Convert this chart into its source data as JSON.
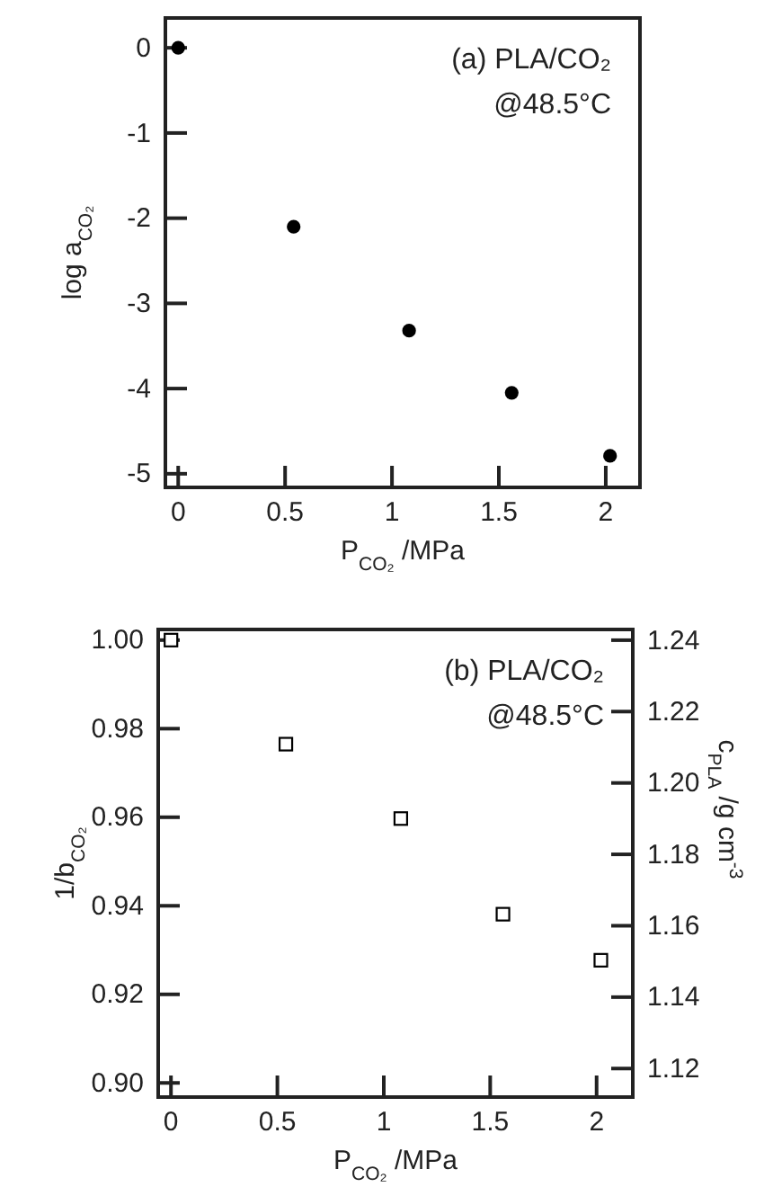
{
  "chart_data": [
    {
      "type": "scatter",
      "xlabel": "P$_{CO₂}$ /MPa",
      "ylabel": "log a$_{CO₂}$",
      "annotations": [
        "(a) PLA/CO₂",
        "@48.5°C"
      ],
      "marker": "circle",
      "xlim": [
        -0.06,
        2.16
      ],
      "xticks": [
        0,
        0.5,
        1,
        1.5,
        2
      ],
      "ylim": [
        -5.16,
        0.35
      ],
      "yticks": [
        0,
        -1,
        -2,
        -3,
        -4,
        -5
      ],
      "series": [
        {
          "color": "#000000",
          "x": [
            0,
            0.54,
            1.08,
            1.56,
            2.02
          ],
          "values": [
            0,
            -2.1,
            -3.32,
            -4.05,
            -4.79
          ]
        }
      ]
    },
    {
      "type": "scatter",
      "xlabel": "P$_{CO₂}$ /MPa",
      "ylabel": "1/b$_{CO₂}$",
      "y2label": "c$_{PLA}$ /g cm$^{-3}$",
      "annotations": [
        "(b) PLA/CO₂",
        "@48.5°C"
      ],
      "marker": "square",
      "xlim": [
        -0.06,
        2.17
      ],
      "xticks": [
        0,
        0.5,
        1,
        1.5,
        2
      ],
      "ylim": [
        0.8968,
        1.0024
      ],
      "yticks": [
        {
          "value": 0.9,
          "label": "0.90"
        },
        {
          "value": 0.92,
          "label": "0.92"
        },
        {
          "value": 0.94,
          "label": "0.94"
        },
        {
          "value": 0.96,
          "label": "0.96"
        },
        {
          "value": 0.98,
          "label": "0.98"
        },
        {
          "value": 1.0,
          "label": "1.00"
        }
      ],
      "y2lim": [
        1.112,
        1.243
      ],
      "y2ticks": [
        1.12,
        1.14,
        1.16,
        1.18,
        {
          "value": 1.2,
          "label": "1.20"
        },
        1.22,
        1.24
      ],
      "series": [
        {
          "color": "#000000",
          "x": [
            0,
            0.54,
            1.08,
            1.56,
            2.02
          ],
          "values": [
            1.0,
            0.9765,
            0.9597,
            0.9381,
            0.9277
          ]
        }
      ]
    }
  ]
}
